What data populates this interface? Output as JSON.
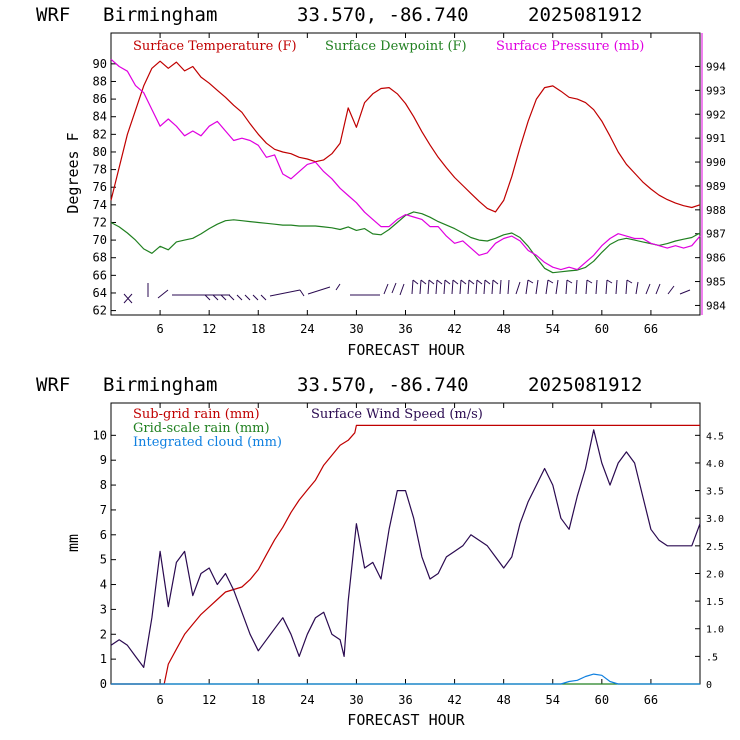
{
  "charts": [
    {
      "header": {
        "model": "WRF",
        "location": "Birmingham",
        "coords": "33.570, -86.740",
        "run": "2025081912"
      },
      "xlabel": "FORECAST HOUR",
      "ylabel": "Degrees F",
      "x_ticks": [
        "6",
        "12",
        "18",
        "24",
        "30",
        "36",
        "42",
        "48",
        "54",
        "60",
        "66"
      ],
      "y_left_ticks": [
        "62",
        "64",
        "66",
        "68",
        "70",
        "72",
        "74",
        "76",
        "78",
        "80",
        "82",
        "84",
        "86",
        "88",
        "90"
      ],
      "y_right_ticks": [
        "984",
        "985",
        "986",
        "987",
        "988",
        "989",
        "990",
        "991",
        "992",
        "993",
        "994"
      ],
      "legend": [
        {
          "label": "Surface Temperature (F)",
          "color": "#c00000"
        },
        {
          "label": "Surface Dewpoint (F)",
          "color": "#208020"
        },
        {
          "label": "Surface Pressure (mb)",
          "color": "#e000e0"
        }
      ]
    },
    {
      "header": {
        "model": "WRF",
        "location": "Birmingham",
        "coords": "33.570, -86.740",
        "run": "2025081912"
      },
      "xlabel": "FORECAST HOUR",
      "ylabel": "mm",
      "x_ticks": [
        "6",
        "12",
        "18",
        "24",
        "30",
        "36",
        "42",
        "48",
        "54",
        "60",
        "66"
      ],
      "y_left_ticks": [
        "0",
        "1",
        "2",
        "3",
        "4",
        "5",
        "6",
        "7",
        "8",
        "9",
        "10"
      ],
      "y_right_ticks": [
        "0",
        ".5",
        "1.0",
        "1.5",
        "2.0",
        "2.5",
        "3.0",
        "3.5",
        "4.0",
        "4.5"
      ],
      "legend": [
        {
          "label": "Sub-grid rain (mm)",
          "color": "#c00000"
        },
        {
          "label": "Grid-scale rain (mm)",
          "color": "#208020"
        },
        {
          "label": "Integrated cloud (mm)",
          "color": "#1080e0"
        },
        {
          "label": "Surface Wind Speed (m/s)",
          "color": "#2a0a50"
        }
      ]
    }
  ],
  "chart_data": [
    {
      "type": "line",
      "x_range": [
        0,
        72
      ],
      "ylim_left": [
        61.5,
        93.5
      ],
      "ylim_right": [
        983.6,
        995.4
      ],
      "series": [
        {
          "name": "Surface Temperature (F)",
          "axis": "left",
          "color": "#c00000",
          "x": [
            0,
            2,
            4,
            5,
            6,
            7,
            8,
            9,
            10,
            11,
            12,
            13,
            14,
            15,
            16,
            17,
            18,
            19,
            20,
            21,
            22,
            23,
            24,
            25,
            26,
            27,
            28,
            29,
            30,
            31,
            32,
            33,
            34,
            35,
            36,
            37,
            38,
            39,
            40,
            41,
            42,
            43,
            44,
            45,
            46,
            47,
            48,
            49,
            50,
            51,
            52,
            53,
            54,
            55,
            56,
            57,
            58,
            59,
            60,
            61,
            62,
            63,
            64,
            65,
            66,
            67,
            68,
            69,
            70,
            71,
            72
          ],
          "y": [
            74.5,
            82,
            87.5,
            89.5,
            90.3,
            89.5,
            90.2,
            89.2,
            89.7,
            88.5,
            87.8,
            87,
            86.2,
            85.3,
            84.5,
            83.2,
            82,
            81,
            80.3,
            80,
            79.8,
            79.4,
            79.2,
            78.9,
            79.1,
            79.8,
            81,
            85,
            82.8,
            85.6,
            86.6,
            87.2,
            87.3,
            86.6,
            85.5,
            84,
            82.3,
            80.8,
            79.4,
            78.2,
            77.1,
            76.2,
            75.3,
            74.4,
            73.6,
            73.2,
            74.5,
            77.2,
            80.5,
            83.5,
            86,
            87.3,
            87.5,
            86.9,
            86.2,
            86,
            85.6,
            84.8,
            83.5,
            81.8,
            80,
            78.6,
            77.6,
            76.6,
            75.8,
            75.1,
            74.6,
            74.2,
            73.9,
            73.7,
            74
          ]
        },
        {
          "name": "Surface Dewpoint (F)",
          "axis": "left",
          "color": "#208020",
          "x": [
            0,
            1,
            2,
            3,
            4,
            5,
            6,
            7,
            8,
            9,
            10,
            11,
            12,
            13,
            14,
            15,
            16,
            17,
            18,
            19,
            20,
            21,
            22,
            23,
            24,
            25,
            26,
            27,
            28,
            29,
            30,
            31,
            32,
            33,
            34,
            35,
            36,
            37,
            38,
            39,
            40,
            41,
            42,
            43,
            44,
            45,
            46,
            47,
            48,
            49,
            50,
            51,
            52,
            53,
            54,
            55,
            56,
            57,
            58,
            59,
            60,
            61,
            62,
            63,
            64,
            65,
            66,
            67,
            68,
            69,
            70,
            71,
            72
          ],
          "y": [
            72,
            71.5,
            70.8,
            70,
            69,
            68.5,
            69.3,
            68.9,
            69.8,
            70,
            70.2,
            70.7,
            71.3,
            71.8,
            72.2,
            72.3,
            72.2,
            72.1,
            72,
            71.9,
            71.8,
            71.7,
            71.7,
            71.6,
            71.6,
            71.6,
            71.5,
            71.4,
            71.2,
            71.5,
            71.1,
            71.3,
            70.7,
            70.6,
            71.2,
            72,
            72.8,
            73.2,
            73,
            72.6,
            72.1,
            71.7,
            71.3,
            70.8,
            70.3,
            70,
            69.9,
            70.2,
            70.6,
            70.8,
            70.3,
            69.3,
            68,
            66.8,
            66.3,
            66.4,
            66.5,
            66.6,
            66.9,
            67.6,
            68.6,
            69.5,
            70,
            70.2,
            70,
            69.8,
            69.6,
            69.4,
            69.6,
            69.9,
            70.1,
            70.3,
            70.8
          ]
        },
        {
          "name": "Surface Pressure (mb)",
          "axis": "right",
          "color": "#e000e0",
          "x": [
            0,
            1,
            2,
            3,
            4,
            5,
            6,
            7,
            8,
            9,
            10,
            11,
            12,
            13,
            14,
            15,
            16,
            17,
            18,
            19,
            20,
            21,
            22,
            23,
            24,
            25,
            26,
            27,
            28,
            29,
            30,
            31,
            32,
            33,
            34,
            35,
            36,
            37,
            38,
            39,
            40,
            41,
            42,
            43,
            44,
            45,
            46,
            47,
            48,
            49,
            50,
            51,
            52,
            53,
            54,
            55,
            56,
            57,
            58,
            59,
            60,
            61,
            62,
            63,
            64,
            65,
            66,
            67,
            68,
            69,
            70,
            71,
            72
          ],
          "y": [
            994.3,
            994,
            993.8,
            993.2,
            992.9,
            992.2,
            991.5,
            991.8,
            991.5,
            991.1,
            991.3,
            991.1,
            991.5,
            991.7,
            991.3,
            990.9,
            991,
            990.9,
            990.7,
            990.2,
            990.3,
            989.5,
            989.3,
            989.6,
            989.9,
            990,
            989.6,
            989.3,
            988.9,
            988.6,
            988.3,
            987.9,
            987.6,
            987.3,
            987.3,
            987.6,
            987.8,
            987.7,
            987.6,
            987.3,
            987.3,
            986.9,
            986.6,
            986.7,
            986.4,
            986.1,
            986.2,
            986.6,
            986.8,
            986.9,
            986.7,
            986.3,
            986.1,
            985.8,
            985.6,
            985.5,
            985.6,
            985.5,
            985.8,
            986.1,
            986.5,
            986.8,
            987,
            986.9,
            986.8,
            986.8,
            986.6,
            986.5,
            986.4,
            986.5,
            986.4,
            986.5,
            986.9
          ]
        }
      ]
    },
    {
      "type": "line",
      "x_range": [
        0,
        72
      ],
      "ylim_left": [
        0,
        11.3
      ],
      "ylim_right": [
        0,
        5.085
      ],
      "series": [
        {
          "name": "Sub-grid rain (mm)",
          "axis": "left",
          "color": "#c00000",
          "x": [
            0,
            6.5,
            7,
            8,
            9,
            10,
            11,
            12,
            13,
            14,
            15,
            16,
            17,
            18,
            19,
            20,
            21,
            22,
            23,
            24,
            25,
            26,
            27,
            28,
            29,
            29.8,
            30,
            72
          ],
          "y": [
            0,
            0,
            0.8,
            1.4,
            2,
            2.4,
            2.8,
            3.1,
            3.4,
            3.7,
            3.8,
            3.9,
            4.2,
            4.6,
            5.2,
            5.8,
            6.3,
            6.9,
            7.4,
            7.8,
            8.2,
            8.8,
            9.2,
            9.6,
            9.8,
            10.1,
            10.4,
            10.4
          ]
        },
        {
          "name": "Grid-scale rain (mm)",
          "axis": "left",
          "color": "#208020",
          "x": [
            0,
            72
          ],
          "y": [
            0,
            0
          ]
        },
        {
          "name": "Integrated cloud (mm)",
          "axis": "left",
          "color": "#1080e0",
          "x": [
            0,
            55,
            56,
            57,
            58,
            59,
            60,
            61,
            62,
            72
          ],
          "y": [
            0,
            0,
            0.1,
            0.15,
            0.3,
            0.4,
            0.35,
            0.1,
            0,
            0
          ]
        },
        {
          "name": "Surface Wind Speed (m/s)",
          "axis": "right",
          "color": "#2a0a50",
          "x": [
            0,
            1,
            2,
            3,
            4,
            5,
            6,
            7,
            8,
            9,
            10,
            11,
            12,
            13,
            14,
            15,
            16,
            17,
            18,
            19,
            20,
            21,
            22,
            23,
            24,
            25,
            26,
            27,
            28,
            28.5,
            29,
            30,
            31,
            32,
            33,
            34,
            35,
            36,
            37,
            38,
            39,
            40,
            41,
            42,
            43,
            44,
            45,
            46,
            47,
            48,
            49,
            50,
            51,
            52,
            53,
            54,
            55,
            56,
            57,
            58,
            59,
            60,
            61,
            62,
            63,
            64,
            65,
            66,
            67,
            68,
            69,
            70,
            71,
            72
          ],
          "y": [
            0.7,
            0.8,
            0.7,
            0.5,
            0.3,
            1.2,
            2.4,
            1.4,
            2.2,
            2.4,
            1.6,
            2.0,
            2.1,
            1.8,
            2.0,
            1.7,
            1.3,
            0.9,
            0.6,
            0.8,
            1.0,
            1.2,
            0.9,
            0.5,
            0.9,
            1.2,
            1.3,
            0.9,
            0.8,
            0.5,
            1.5,
            2.9,
            2.1,
            2.2,
            1.9,
            2.8,
            3.5,
            3.5,
            3.0,
            2.3,
            1.9,
            2.0,
            2.3,
            2.4,
            2.5,
            2.7,
            2.6,
            2.5,
            2.3,
            2.1,
            2.3,
            2.9,
            3.3,
            3.6,
            3.9,
            3.6,
            3.0,
            2.8,
            3.4,
            3.9,
            4.6,
            4.0,
            3.6,
            4.0,
            4.2,
            4.0,
            3.4,
            2.8,
            2.6,
            2.5,
            2.5,
            2.5,
            2.5,
            2.9
          ]
        }
      ]
    }
  ]
}
